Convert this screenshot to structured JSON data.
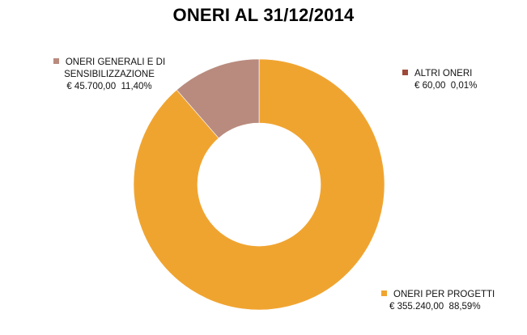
{
  "chart_data": {
    "type": "pie",
    "donut": true,
    "title": "ONERI AL 31/12/2014",
    "slices": [
      {
        "label": "ONERI GENERALI E DI SENSIBILIZZAZIONE",
        "value": 45700.0,
        "value_text": "€ 45.700,00",
        "percent": 11.4,
        "percent_text": "11,40%",
        "color": "#b98b7e"
      },
      {
        "label": "ALTRI ONERI",
        "value": 60.0,
        "value_text": "€ 60,00",
        "percent": 0.01,
        "percent_text": "0,01%",
        "color": "#9e4a3a"
      },
      {
        "label": "ONERI PER PROGETTI",
        "value": 355240.0,
        "value_text": "€ 355.240,00",
        "percent": 88.59,
        "percent_text": "88,59%",
        "color": "#f0a430"
      }
    ]
  }
}
